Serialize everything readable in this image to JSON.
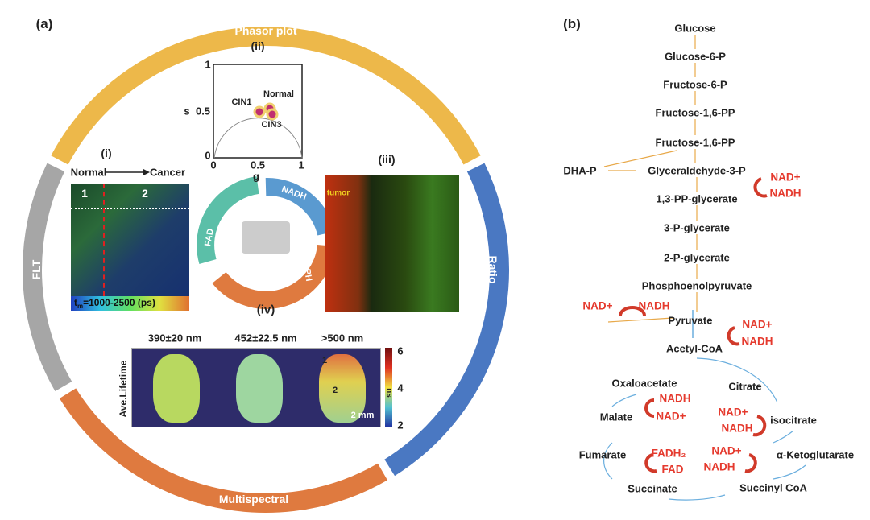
{
  "panel_a": {
    "label": "(a)",
    "ring": [
      {
        "name": "Phasor plot",
        "color": "#EDB84A"
      },
      {
        "name": "Ratio",
        "color": "#4A78C2"
      },
      {
        "name": "Multispectral",
        "color": "#DF7A3F"
      },
      {
        "name": "FLT",
        "color": "#A6A6A6"
      }
    ],
    "sub_i": {
      "label": "(i)",
      "from": "Normal",
      "to": "Cancer",
      "region1": "1",
      "region2": "2",
      "scale_text": "t",
      "scale_sub": "m",
      "scale_range": "=1000-2500 (ps)"
    },
    "sub_ii": {
      "label": "(ii)",
      "ylabel": "s",
      "xlabel": "g",
      "yticks": [
        "1",
        "0.5",
        "0"
      ],
      "xticks": [
        "0",
        "0.5",
        "1"
      ],
      "clusters": [
        "CIN1",
        "Normal",
        "CIN3"
      ]
    },
    "sub_iii": {
      "label": "(iii)",
      "tumor": "tumor"
    },
    "sub_iv": {
      "label": "(iv)",
      "segments": [
        "NADH",
        "NADPH",
        "FAD"
      ]
    },
    "multispectral": {
      "bands": [
        "390±20 nm",
        "452±22.5 nm",
        ">500 nm"
      ],
      "ylabel": "Ave.Lifetime",
      "unit": "ns",
      "cticks": [
        "6",
        "4",
        "2"
      ],
      "roi1": "1",
      "roi2": "2",
      "scale": "2 mm"
    }
  },
  "panel_b": {
    "label": "(b)",
    "metabolites": [
      "Glucose",
      "Glucose-6-P",
      "Fructose-6-P",
      "Fructose-1,6-PP",
      "Fructose-1,6-PP",
      "DHA-P",
      "Glyceraldehyde-3-P",
      "1,3-PP-glycerate",
      "3-P-glycerate",
      "2-P-glycerate",
      "Phosphoenolpyruvate",
      "Pyruvate",
      "Acetyl-CoA",
      "Citrate",
      "Oxaloacetate",
      "isocitrate",
      "Malate",
      "α-Ketoglutarate",
      "Fumarate",
      "Succinyl CoA",
      "Succinate"
    ],
    "cofactors": [
      "NAD+",
      "NADH",
      "NAD+",
      "NADH",
      "NAD+",
      "NADH",
      "NADH",
      "NAD+",
      "NAD+",
      "NADH",
      "NAD+",
      "NADH",
      "FADH₂",
      "FAD"
    ]
  }
}
